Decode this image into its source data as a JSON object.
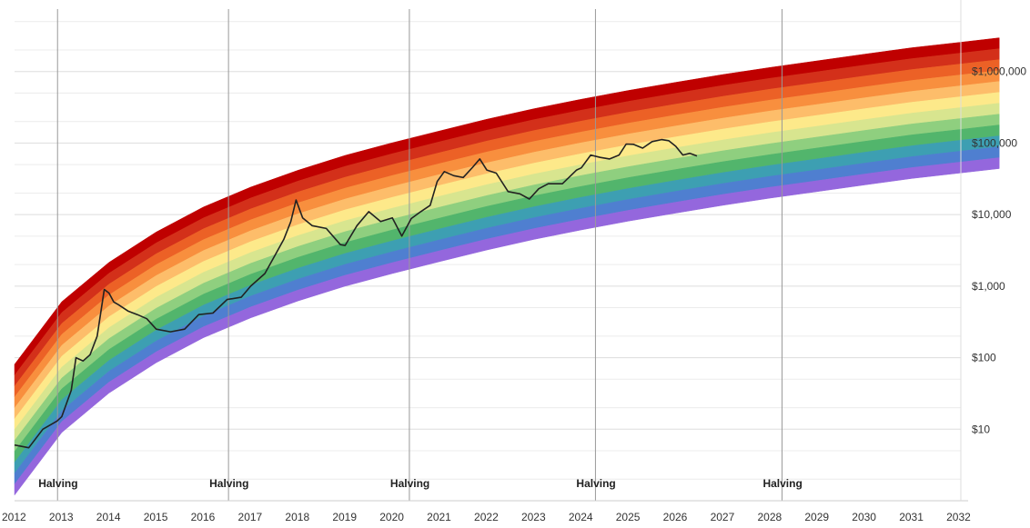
{
  "chart_data": {
    "type": "area",
    "title": "",
    "xlabel": "",
    "ylabel": "",
    "y_scale": "log",
    "xlim": [
      2012,
      2033
    ],
    "ylim": [
      1,
      10000000
    ],
    "grid": true,
    "legend": "none",
    "x_ticks": [
      2012,
      2013,
      2014,
      2015,
      2016,
      2017,
      2018,
      2019,
      2020,
      2021,
      2022,
      2023,
      2024,
      2025,
      2026,
      2027,
      2028,
      2029,
      2030,
      2031,
      2032
    ],
    "x_tick_labels": [
      "2012",
      "2013",
      "2014",
      "2015",
      "2016",
      "2017",
      "2018",
      "2019",
      "2020",
      "2021",
      "2022",
      "2023",
      "2024",
      "2025",
      "2026",
      "2027",
      "2028",
      "2029",
      "2030",
      "2031",
      "2032"
    ],
    "y_ticks": [
      10,
      100,
      1000,
      10000,
      100000,
      1000000
    ],
    "y_tick_labels": [
      "$10",
      "$100",
      "$1,000",
      "$10,000",
      "$100,000",
      "$1,000,000"
    ],
    "halvings": [
      {
        "date": 2012.91,
        "label": "Halving"
      },
      {
        "date": 2016.53,
        "label": "Halving"
      },
      {
        "date": 2020.36,
        "label": "Halving"
      },
      {
        "date": 2024.3,
        "label": "Halving"
      },
      {
        "date": 2028.25,
        "label": "Halving"
      }
    ],
    "rainbow": {
      "bottom_band": {
        "x": [
          2012.0,
          2013.0,
          2014.0,
          2015.0,
          2016.0,
          2017.0,
          2018.0,
          2019.0,
          2020.0,
          2021.0,
          2022.0,
          2023.0,
          2024.0,
          2025.0,
          2026.0,
          2027.0,
          2028.0,
          2029.0,
          2030.0,
          2031.0,
          2032.0,
          2032.85
        ],
        "y": [
          1.2,
          9,
          32,
          85,
          190,
          360,
          620,
          1000,
          1500,
          2200,
          3200,
          4500,
          6100,
          8100,
          10500,
          13500,
          17000,
          21000,
          26000,
          32000,
          38000,
          44000
        ]
      },
      "band_ratio": 1.42,
      "band_colors": [
        "#9467dd",
        "#4f7fd0",
        "#3d9fb2",
        "#52b56c",
        "#8fcf7f",
        "#d8e58f",
        "#fde98a",
        "#fdbd6a",
        "#f88f3e",
        "#ec6126",
        "#d3301a",
        "#bf0000"
      ]
    },
    "series": [
      {
        "color": "#222222",
        "x": [
          2012.0,
          2012.3,
          2012.6,
          2012.9,
          2013.0,
          2013.2,
          2013.3,
          2013.45,
          2013.6,
          2013.75,
          2013.9,
          2014.0,
          2014.1,
          2014.2,
          2014.4,
          2014.6,
          2014.8,
          2015.0,
          2015.3,
          2015.6,
          2015.9,
          2016.2,
          2016.5,
          2016.8,
          2017.0,
          2017.3,
          2017.5,
          2017.7,
          2017.85,
          2017.96,
          2018.1,
          2018.3,
          2018.6,
          2018.9,
          2019.0,
          2019.25,
          2019.5,
          2019.75,
          2020.0,
          2020.2,
          2020.4,
          2020.6,
          2020.8,
          2020.95,
          2021.1,
          2021.3,
          2021.5,
          2021.7,
          2021.85,
          2022.0,
          2022.2,
          2022.45,
          2022.7,
          2022.9,
          2023.1,
          2023.3,
          2023.6,
          2023.9,
          2024.0,
          2024.2,
          2024.4,
          2024.6,
          2024.8,
          2024.95,
          2025.1,
          2025.3,
          2025.5,
          2025.7,
          2025.85,
          2026.0,
          2026.15,
          2026.3,
          2026.45
        ],
        "y": [
          6,
          5.5,
          10,
          13,
          15,
          35,
          100,
          90,
          110,
          200,
          900,
          800,
          600,
          550,
          450,
          400,
          350,
          250,
          230,
          250,
          400,
          420,
          650,
          700,
          1000,
          1500,
          2600,
          4500,
          8000,
          16000,
          9000,
          7000,
          6400,
          3800,
          3700,
          7000,
          11000,
          8000,
          9000,
          5000,
          8800,
          11000,
          13500,
          29000,
          40000,
          35000,
          33000,
          46000,
          60000,
          42000,
          38000,
          21000,
          19500,
          16500,
          23000,
          27000,
          27000,
          42000,
          45000,
          68000,
          63000,
          60000,
          68000,
          97000,
          96000,
          85000,
          105000,
          112000,
          108000,
          90000,
          68000,
          72000,
          66000
        ]
      }
    ]
  }
}
